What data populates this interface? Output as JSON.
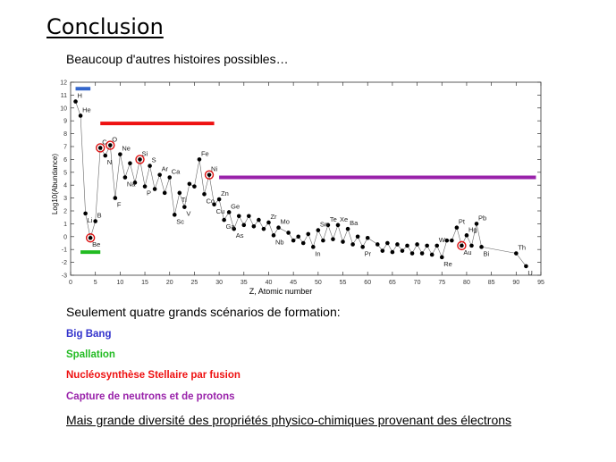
{
  "slide": {
    "title": "Conclusion",
    "subtitle": "Beaucoup d'autres histoires possibles…",
    "scenarios_intro": "Seulement quatre grands scénarios de formation:",
    "scenarios": [
      {
        "label": "Big Bang",
        "color": "#3333cc"
      },
      {
        "label": "Spallation",
        "color": "#22bb22"
      },
      {
        "label": "Nucléosynthèse Stellaire par fusion",
        "color": "#ee1111"
      },
      {
        "label": "Capture de neutrons et de protons",
        "color": "#9922aa"
      }
    ],
    "footer": "Mais grande diversité des propriétés physico-chimiques provenant des électrons"
  },
  "chart_data": {
    "type": "line",
    "xlabel": "Z, Atomic number",
    "ylabel": "Log10(Abundance)",
    "xlim": [
      0,
      95
    ],
    "ylim": [
      -3,
      12
    ],
    "xticks": [
      0,
      5,
      10,
      15,
      20,
      25,
      30,
      35,
      40,
      45,
      50,
      55,
      60,
      65,
      70,
      75,
      80,
      85,
      90,
      95
    ],
    "yticks": [
      -3,
      -2,
      -1,
      0,
      1,
      2,
      3,
      4,
      5,
      6,
      7,
      8,
      9,
      10,
      11,
      12
    ],
    "grid": false,
    "series": [
      {
        "x": [
          1,
          2,
          3,
          4,
          5,
          6,
          7,
          8,
          9,
          10,
          11,
          12,
          13,
          14,
          15,
          16,
          17,
          18,
          19,
          20,
          21,
          22,
          23,
          24,
          25,
          26,
          27,
          28,
          29,
          30,
          31,
          32,
          33,
          34,
          35,
          36,
          37,
          38,
          39,
          40,
          41,
          42,
          44,
          45,
          46,
          47,
          48,
          49,
          50,
          51,
          52,
          53,
          54,
          55,
          56,
          57,
          58,
          59,
          60,
          62,
          63,
          64,
          65,
          66,
          67,
          68,
          69,
          70,
          71,
          72,
          73,
          74,
          75,
          76,
          77,
          78,
          79,
          80,
          81,
          82,
          83,
          90,
          92
        ],
        "y": [
          10.5,
          9.4,
          1.8,
          -0.1,
          1.2,
          6.9,
          6.3,
          7.1,
          3.0,
          6.4,
          4.6,
          5.7,
          4.2,
          6.0,
          3.9,
          5.5,
          3.7,
          4.8,
          3.4,
          4.6,
          1.7,
          3.4,
          2.3,
          4.1,
          3.9,
          6.0,
          3.3,
          4.8,
          2.5,
          2.9,
          1.3,
          1.9,
          0.6,
          1.6,
          0.9,
          1.6,
          0.8,
          1.3,
          0.6,
          1.1,
          0.1,
          0.7,
          0.3,
          -0.3,
          0.0,
          -0.5,
          0.2,
          -0.8,
          0.5,
          -0.3,
          0.9,
          -0.2,
          0.9,
          -0.4,
          0.6,
          -0.6,
          0.0,
          -0.8,
          -0.1,
          -0.6,
          -1.1,
          -0.5,
          -1.2,
          -0.6,
          -1.1,
          -0.7,
          -1.3,
          -0.6,
          -1.3,
          -0.7,
          -1.4,
          -0.7,
          -1.6,
          -0.3,
          -0.3,
          0.7,
          -0.7,
          0.1,
          -0.7,
          1.0,
          -0.8,
          -1.3,
          -2.3
        ]
      }
    ],
    "element_labels": [
      {
        "text": "H",
        "x": 1,
        "y": 10.5
      },
      {
        "text": "He",
        "x": 2,
        "y": 9.4
      },
      {
        "text": "Li",
        "x": 3,
        "y": 1.8
      },
      {
        "text": "Be",
        "x": 4,
        "y": -0.1
      },
      {
        "text": "B",
        "x": 5,
        "y": 1.2
      },
      {
        "text": "C",
        "x": 6,
        "y": 6.9
      },
      {
        "text": "N",
        "x": 7,
        "y": 6.3
      },
      {
        "text": "O",
        "x": 8,
        "y": 7.1
      },
      {
        "text": "F",
        "x": 9,
        "y": 3.0
      },
      {
        "text": "Ne",
        "x": 10,
        "y": 6.4
      },
      {
        "text": "Na",
        "x": 11,
        "y": 4.6
      },
      {
        "text": "P",
        "x": 15,
        "y": 3.9
      },
      {
        "text": "Si",
        "x": 14,
        "y": 6.0
      },
      {
        "text": "S",
        "x": 16,
        "y": 5.5
      },
      {
        "text": "Ar",
        "x": 18,
        "y": 4.8
      },
      {
        "text": "Ca",
        "x": 20,
        "y": 4.6
      },
      {
        "text": "Ti",
        "x": 22,
        "y": 3.4
      },
      {
        "text": "Sc",
        "x": 21,
        "y": 1.7
      },
      {
        "text": "V",
        "x": 23,
        "y": 2.3
      },
      {
        "text": "Fe",
        "x": 26,
        "y": 6.0
      },
      {
        "text": "Ni",
        "x": 28,
        "y": 4.8
      },
      {
        "text": "Co",
        "x": 27,
        "y": 3.3
      },
      {
        "text": "Zn",
        "x": 30,
        "y": 2.9
      },
      {
        "text": "Cu",
        "x": 29,
        "y": 2.5
      },
      {
        "text": "Ge",
        "x": 32,
        "y": 1.9
      },
      {
        "text": "Ga",
        "x": 31,
        "y": 1.3
      },
      {
        "text": "As",
        "x": 33,
        "y": 0.6
      },
      {
        "text": "Zr",
        "x": 40,
        "y": 1.1
      },
      {
        "text": "Mo",
        "x": 42,
        "y": 0.7
      },
      {
        "text": "Nb",
        "x": 41,
        "y": 0.1
      },
      {
        "text": "Sn",
        "x": 50,
        "y": 0.5
      },
      {
        "text": "Te",
        "x": 52,
        "y": 0.9
      },
      {
        "text": "Xe",
        "x": 54,
        "y": 0.9
      },
      {
        "text": "Ba",
        "x": 56,
        "y": 0.6
      },
      {
        "text": "In",
        "x": 49,
        "y": -0.8
      },
      {
        "text": "Pr",
        "x": 59,
        "y": -0.8
      },
      {
        "text": "W",
        "x": 74,
        "y": -0.7
      },
      {
        "text": "Re",
        "x": 75,
        "y": -1.6
      },
      {
        "text": "Pt",
        "x": 78,
        "y": 0.7
      },
      {
        "text": "Hg",
        "x": 80,
        "y": 0.1
      },
      {
        "text": "Au",
        "x": 79,
        "y": -0.7
      },
      {
        "text": "Pb",
        "x": 82,
        "y": 1.0
      },
      {
        "text": "Bi",
        "x": 83,
        "y": -0.8
      },
      {
        "text": "Th",
        "x": 90,
        "y": -1.3
      },
      {
        "text": "U",
        "x": 92,
        "y": -2.3
      }
    ],
    "circled_elements": [
      4,
      6,
      8,
      14,
      28,
      79
    ],
    "scenario_bars": [
      {
        "x": [
          1,
          4
        ],
        "y": 11.5,
        "color": "#3366cc"
      },
      {
        "x": [
          2,
          6
        ],
        "y": -1.2,
        "color": "#22bb22"
      },
      {
        "x": [
          6,
          29
        ],
        "y": 8.8,
        "color": "#ee1111"
      },
      {
        "x": [
          30,
          94
        ],
        "y": 4.6,
        "color": "#9922aa"
      }
    ]
  }
}
